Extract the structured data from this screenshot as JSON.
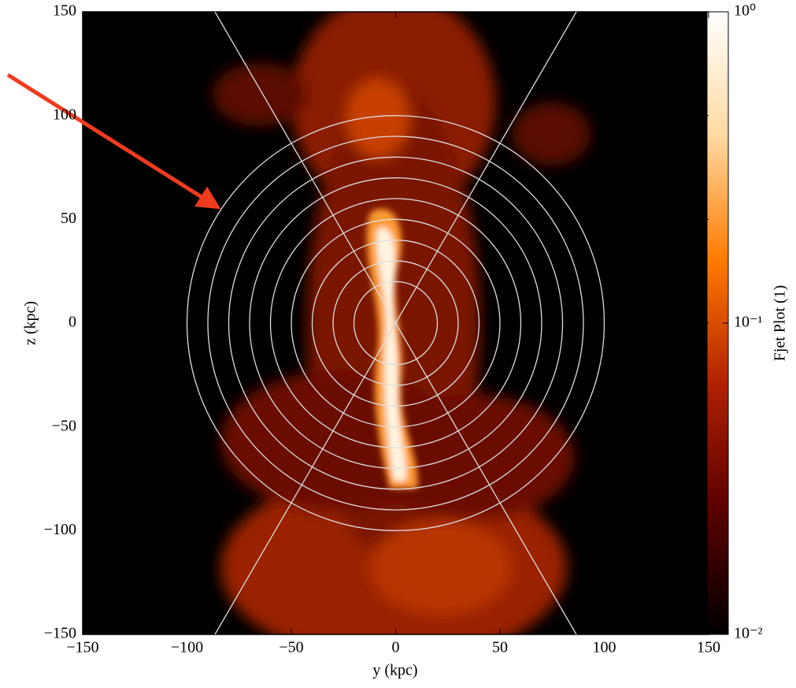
{
  "chart_data": {
    "type": "image",
    "xlabel": "y  (kpc)",
    "ylabel": "z  (kpc)",
    "colorbar_label": "Fjet Plot  (1)",
    "xlim": [
      -150,
      150
    ],
    "ylim": [
      -150,
      150
    ],
    "xticks": [
      {
        "value": -150,
        "label": "−150"
      },
      {
        "value": -100,
        "label": "−100"
      },
      {
        "value": -50,
        "label": "−50"
      },
      0,
      50,
      100,
      150
    ],
    "yticks": [
      {
        "value": -150,
        "label": "−150"
      },
      {
        "value": -100,
        "label": "−100"
      },
      {
        "value": -50,
        "label": "−50"
      },
      0,
      50,
      100,
      150
    ],
    "colorbar_lim": [
      0.01,
      1
    ],
    "colorbar_log": true,
    "colorbar_ticks": [
      {
        "value": 0.01,
        "label": "10⁻²"
      },
      {
        "value": 0.1,
        "label": "10⁻¹"
      },
      {
        "value": 1,
        "label": "10⁰"
      }
    ],
    "colormap": [
      "#000000",
      "#5a0000",
      "#b02000",
      "#ff7a00",
      "#ffd9a0",
      "#ffffff"
    ],
    "circle_radii": [
      20,
      30,
      40,
      50,
      60,
      70,
      80,
      90,
      100
    ],
    "cone_half_angle": 30,
    "overlay_color": "#dddddd"
  }
}
